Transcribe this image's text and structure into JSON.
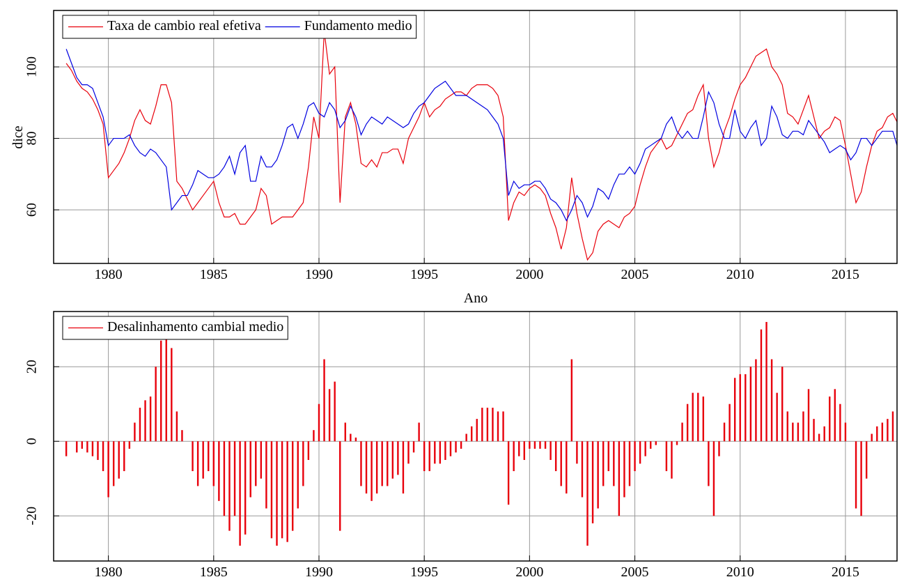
{
  "chart_data": [
    {
      "type": "line",
      "xlabel": "Ano",
      "ylabel": "dice",
      "x": [
        1978,
        1978.25,
        1978.5,
        1978.75,
        1979,
        1979.25,
        1979.5,
        1979.75,
        1980,
        1980.25,
        1980.5,
        1980.75,
        1981,
        1981.25,
        1981.5,
        1981.75,
        1982,
        1982.25,
        1982.5,
        1982.75,
        1983,
        1983.25,
        1983.5,
        1983.75,
        1984,
        1984.25,
        1984.5,
        1984.75,
        1985,
        1985.25,
        1985.5,
        1985.75,
        1986,
        1986.25,
        1986.5,
        1986.75,
        1987,
        1987.25,
        1987.5,
        1987.75,
        1988,
        1988.25,
        1988.5,
        1988.75,
        1989,
        1989.25,
        1989.5,
        1989.75,
        1990,
        1990.25,
        1990.5,
        1990.75,
        1991,
        1991.25,
        1991.5,
        1991.75,
        1992,
        1992.25,
        1992.5,
        1992.75,
        1993,
        1993.25,
        1993.5,
        1993.75,
        1994,
        1994.25,
        1994.5,
        1994.75,
        1995,
        1995.25,
        1995.5,
        1995.75,
        1996,
        1996.25,
        1996.5,
        1996.75,
        1997,
        1997.25,
        1997.5,
        1997.75,
        1998,
        1998.25,
        1998.5,
        1998.75,
        1999,
        1999.25,
        1999.5,
        1999.75,
        2000,
        2000.25,
        2000.5,
        2000.75,
        2001,
        2001.25,
        2001.5,
        2001.75,
        2002,
        2002.25,
        2002.5,
        2002.75,
        2003,
        2003.25,
        2003.5,
        2003.75,
        2004,
        2004.25,
        2004.5,
        2004.75,
        2005,
        2005.25,
        2005.5,
        2005.75,
        2006,
        2006.25,
        2006.5,
        2006.75,
        2007,
        2007.25,
        2007.5,
        2007.75,
        2008,
        2008.25,
        2008.5,
        2008.75,
        2009,
        2009.25,
        2009.5,
        2009.75,
        2010,
        2010.25,
        2010.5,
        2010.75,
        2011,
        2011.25,
        2011.5,
        2011.75,
        2012,
        2012.25,
        2012.5,
        2012.75,
        2013,
        2013.25,
        2013.5,
        2013.75,
        2014,
        2014.25,
        2014.5,
        2014.75,
        2015,
        2015.25,
        2015.5,
        2015.75,
        2016,
        2016.25,
        2016.5,
        2016.75,
        2017,
        2017.25,
        2017.5
      ],
      "series": [
        {
          "name": "Taxa de cambio real efetiva",
          "color": "#e8000b",
          "values": [
            101,
            99,
            96,
            94,
            93,
            91,
            88,
            84,
            69,
            71,
            73,
            76,
            80,
            85,
            88,
            85,
            84,
            89,
            95,
            95,
            90,
            68,
            66,
            63,
            60,
            62,
            64,
            66,
            68,
            62,
            58,
            58,
            59,
            56,
            56,
            58,
            60,
            66,
            64,
            56,
            57,
            58,
            58,
            58,
            60,
            62,
            72,
            86,
            80,
            110,
            98,
            100,
            62,
            86,
            90,
            84,
            73,
            72,
            74,
            72,
            76,
            76,
            77,
            77,
            73,
            80,
            83,
            86,
            90,
            86,
            88,
            89,
            91,
            92,
            93,
            93,
            92,
            94,
            95,
            95,
            95,
            94,
            92,
            86,
            57,
            62,
            65,
            64,
            66,
            67,
            66,
            64,
            59,
            55,
            49,
            55,
            69,
            59,
            52,
            46,
            48,
            54,
            56,
            57,
            56,
            55,
            58,
            59,
            61,
            67,
            72,
            76,
            78,
            80,
            77,
            78,
            81,
            84,
            87,
            88,
            92,
            95,
            80,
            72,
            76,
            82,
            86,
            91,
            95,
            97,
            100,
            103,
            104,
            105,
            100,
            98,
            95,
            87,
            86,
            84,
            88,
            92,
            86,
            80,
            82,
            83,
            86,
            85,
            78,
            70,
            62,
            65,
            72,
            78,
            82,
            83,
            86,
            87,
            84
          ]
        },
        {
          "name": "Fundamento medio",
          "color": "#0000e0",
          "values": [
            105,
            101,
            97,
            95,
            95,
            94,
            90,
            86,
            78,
            80,
            80,
            80,
            81,
            78,
            76,
            75,
            77,
            76,
            74,
            72,
            60,
            62,
            64,
            64,
            67,
            71,
            70,
            69,
            69,
            70,
            72,
            75,
            70,
            76,
            78,
            68,
            68,
            75,
            72,
            72,
            74,
            78,
            83,
            84,
            80,
            84,
            89,
            90,
            87,
            86,
            90,
            88,
            83,
            85,
            89,
            86,
            81,
            84,
            86,
            85,
            84,
            86,
            85,
            84,
            83,
            84,
            87,
            89,
            90,
            92,
            94,
            95,
            96,
            94,
            92,
            92,
            92,
            91,
            90,
            89,
            88,
            86,
            84,
            80,
            64,
            68,
            66,
            67,
            67,
            68,
            68,
            66,
            63,
            62,
            60,
            57,
            60,
            64,
            62,
            58,
            61,
            66,
            65,
            63,
            67,
            70,
            70,
            72,
            70,
            73,
            77,
            78,
            79,
            80,
            84,
            86,
            82,
            80,
            82,
            80,
            80,
            86,
            93,
            90,
            84,
            80,
            80,
            88,
            82,
            80,
            83,
            85,
            78,
            80,
            89,
            86,
            81,
            80,
            82,
            82,
            81,
            85,
            83,
            81,
            79,
            76,
            77,
            78,
            77,
            74,
            76,
            80,
            80,
            78,
            80,
            82,
            82,
            82,
            77
          ]
        }
      ],
      "xlim": [
        1977.4,
        2017.45
      ],
      "ylim": [
        45,
        115.8
      ],
      "xticks": [
        1980,
        1985,
        1990,
        1995,
        2000,
        2005,
        2010,
        2015
      ],
      "yticks": [
        60,
        80,
        100
      ],
      "grid": true,
      "legend": "upper left"
    },
    {
      "type": "bar",
      "x": [
        1978,
        1978.25,
        1978.5,
        1978.75,
        1979,
        1979.25,
        1979.5,
        1979.75,
        1980,
        1980.25,
        1980.5,
        1980.75,
        1981,
        1981.25,
        1981.5,
        1981.75,
        1982,
        1982.25,
        1982.5,
        1982.75,
        1983,
        1983.25,
        1983.5,
        1983.75,
        1984,
        1984.25,
        1984.5,
        1984.75,
        1985,
        1985.25,
        1985.5,
        1985.75,
        1986,
        1986.25,
        1986.5,
        1986.75,
        1987,
        1987.25,
        1987.5,
        1987.75,
        1988,
        1988.25,
        1988.5,
        1988.75,
        1989,
        1989.25,
        1989.5,
        1989.75,
        1990,
        1990.25,
        1990.5,
        1990.75,
        1991,
        1991.25,
        1991.5,
        1991.75,
        1992,
        1992.25,
        1992.5,
        1992.75,
        1993,
        1993.25,
        1993.5,
        1993.75,
        1994,
        1994.25,
        1994.5,
        1994.75,
        1995,
        1995.25,
        1995.5,
        1995.75,
        1996,
        1996.25,
        1996.5,
        1996.75,
        1997,
        1997.25,
        1997.5,
        1997.75,
        1998,
        1998.25,
        1998.5,
        1998.75,
        1999,
        1999.25,
        1999.5,
        1999.75,
        2000,
        2000.25,
        2000.5,
        2000.75,
        2001,
        2001.25,
        2001.5,
        2001.75,
        2002,
        2002.25,
        2002.5,
        2002.75,
        2003,
        2003.25,
        2003.5,
        2003.75,
        2004,
        2004.25,
        2004.5,
        2004.75,
        2005,
        2005.25,
        2005.5,
        2005.75,
        2006,
        2006.25,
        2006.5,
        2006.75,
        2007,
        2007.25,
        2007.5,
        2007.75,
        2008,
        2008.25,
        2008.5,
        2008.75,
        2009,
        2009.25,
        2009.5,
        2009.75,
        2010,
        2010.25,
        2010.5,
        2010.75,
        2011,
        2011.25,
        2011.5,
        2011.75,
        2012,
        2012.25,
        2012.5,
        2012.75,
        2013,
        2013.25,
        2013.5,
        2013.75,
        2014,
        2014.25,
        2014.5,
        2014.75,
        2015,
        2015.25,
        2015.5,
        2015.75,
        2016,
        2016.25,
        2016.5,
        2016.75,
        2017,
        2017.25,
        2017.5
      ],
      "series": [
        {
          "name": "Desalinhamento cambial medio",
          "color": "#e8000b",
          "values": [
            -4,
            0,
            -3,
            -2,
            -3,
            -4,
            -5,
            -8,
            -15,
            -12,
            -10,
            -8,
            -2,
            5,
            9,
            11,
            12,
            20,
            27,
            30,
            25,
            8,
            3,
            0,
            -8,
            -12,
            -10,
            -8,
            -12,
            -16,
            -20,
            -24,
            -20,
            -28,
            -25,
            -15,
            -12,
            -10,
            -18,
            -26,
            -28,
            -26,
            -27,
            -24,
            -18,
            -12,
            -5,
            3,
            10,
            22,
            14,
            16,
            -24,
            5,
            2,
            1,
            -12,
            -14,
            -16,
            -14,
            -12,
            -12,
            -10,
            -9,
            -14,
            -6,
            -3,
            5,
            -8,
            -8,
            -6,
            -6,
            -5,
            -4,
            -3,
            -2,
            2,
            4,
            6,
            9,
            9,
            9,
            8,
            8,
            -17,
            -8,
            -4,
            -5,
            -2,
            -2,
            -2,
            -2,
            -5,
            -8,
            -12,
            -14,
            22,
            -6,
            -15,
            -28,
            -22,
            -18,
            -12,
            -8,
            -12,
            -20,
            -15,
            -12,
            -8,
            -6,
            -4,
            -2,
            -1,
            0,
            -8,
            -10,
            -1,
            5,
            10,
            13,
            13,
            12,
            -12,
            -20,
            -4,
            5,
            10,
            17,
            18,
            18,
            20,
            22,
            30,
            32,
            22,
            13,
            20,
            8,
            5,
            5,
            8,
            14,
            6,
            2,
            4,
            12,
            14,
            10,
            5,
            0,
            -18,
            -20,
            -10,
            2,
            4,
            5,
            6,
            8,
            6
          ]
        }
      ],
      "xlim": [
        1977.4,
        2017.45
      ],
      "ylim": [
        -32.1,
        34.8
      ],
      "xticks": [
        1980,
        1985,
        1990,
        1995,
        2000,
        2005,
        2010,
        2015
      ],
      "yticks": [
        -20,
        0,
        20
      ],
      "grid": true,
      "legend": "upper left"
    }
  ]
}
